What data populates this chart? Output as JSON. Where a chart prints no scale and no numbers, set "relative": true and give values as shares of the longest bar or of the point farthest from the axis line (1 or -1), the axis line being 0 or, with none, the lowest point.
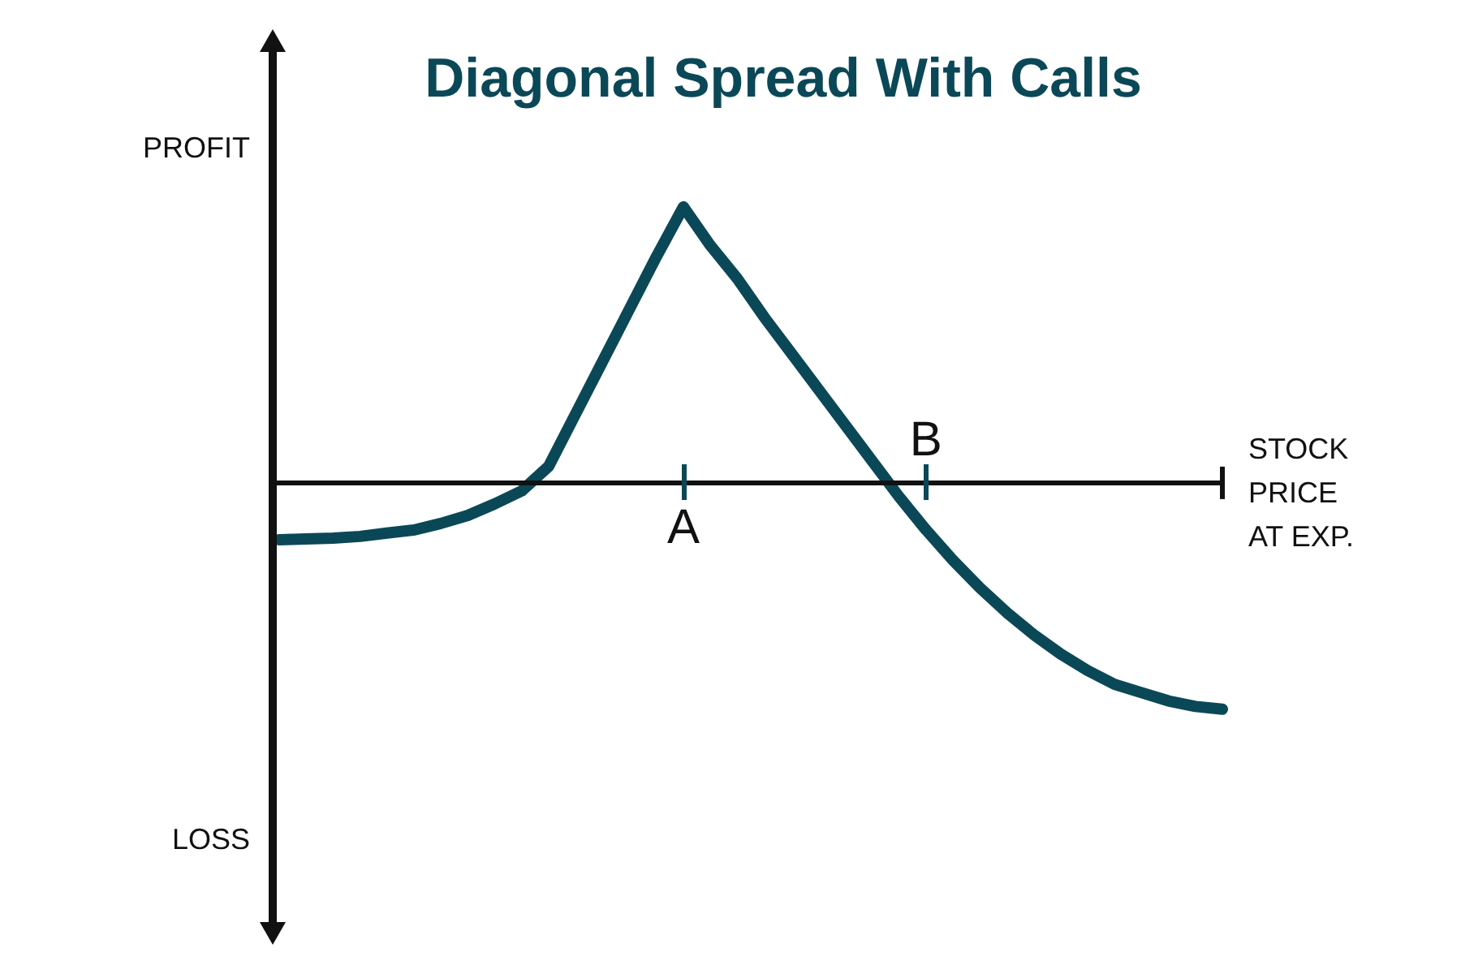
{
  "chart_data": {
    "type": "line",
    "title": "Diagonal Spread With Calls",
    "xlabel": "STOCK PRICE AT EXP.",
    "annotations": [
      "PROFIT",
      "LOSS"
    ],
    "relative": true,
    "legend": false,
    "marker": "none",
    "categories": [
      null,
      null,
      null,
      null,
      null,
      null,
      null,
      null,
      null,
      null,
      null,
      null,
      null,
      null,
      null,
      "A",
      null,
      null,
      null,
      null,
      null,
      null,
      null,
      null,
      "B",
      null,
      null,
      null,
      null,
      null,
      null,
      null,
      null,
      null,
      null,
      null
    ],
    "series": [
      {
        "color": "#0b4857",
        "values": [
          -0.206,
          -0.203,
          -0.2,
          -0.194,
          -0.182,
          -0.171,
          -0.147,
          -0.118,
          -0.076,
          -0.029,
          0.06,
          0.25,
          0.44,
          0.63,
          0.82,
          1,
          0.86,
          0.74,
          0.6,
          0.47,
          0.34,
          0.21,
          0.08,
          -0.05,
          -0.17,
          -0.28,
          -0.38,
          -0.47,
          -0.55,
          -0.62,
          -0.68,
          -0.73,
          -0.76,
          -0.79,
          -0.81,
          -0.82
        ]
      }
    ]
  }
}
